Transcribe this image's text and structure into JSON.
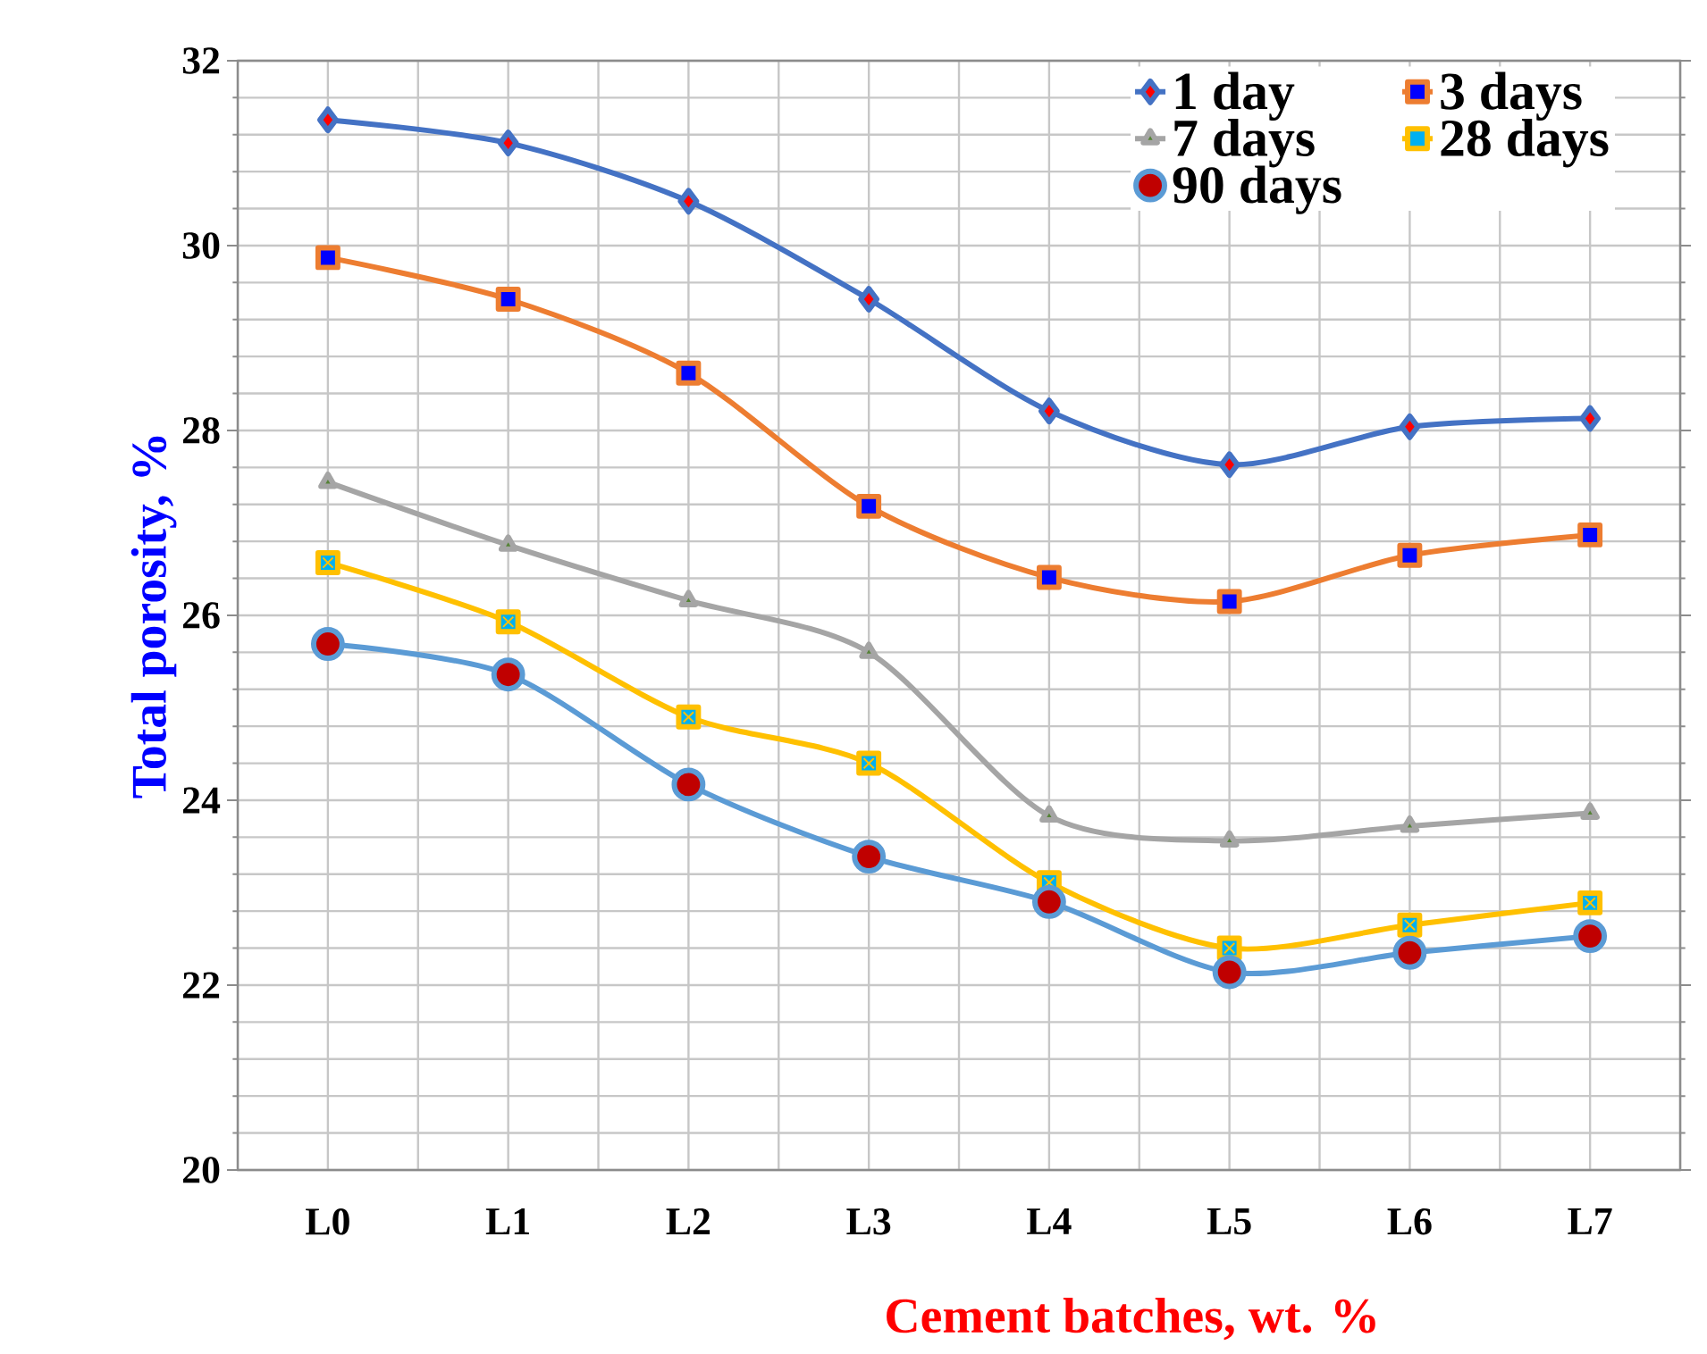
{
  "chart_data": {
    "type": "line",
    "xlabel": "Cement batches, wt. %",
    "ylabel": "Total porosity, %",
    "categories": [
      "L0",
      "L1",
      "L2",
      "L3",
      "L4",
      "L5",
      "L6",
      "L7"
    ],
    "series": [
      {
        "name": "1 day",
        "color": "#4472c4",
        "marker": "diamond",
        "values": [
          31.36,
          31.11,
          30.48,
          29.42,
          28.21,
          27.63,
          28.04,
          28.13
        ]
      },
      {
        "name": "3 days",
        "color": "#ed7d31",
        "marker": "square",
        "values": [
          29.87,
          29.42,
          28.62,
          27.18,
          26.41,
          26.15,
          26.65,
          26.87
        ]
      },
      {
        "name": "7 days",
        "color": "#a5a5a5",
        "marker": "triangle",
        "values": [
          27.44,
          26.76,
          26.16,
          25.6,
          23.83,
          23.56,
          23.72,
          23.86
        ]
      },
      {
        "name": "28 days",
        "color": "#ffc000",
        "marker": "cross",
        "values": [
          26.57,
          25.93,
          24.9,
          24.4,
          23.11,
          22.4,
          22.65,
          22.89
        ]
      },
      {
        "name": "90 days",
        "color": "#5b9bd5",
        "marker": "circle",
        "values": [
          25.69,
          25.36,
          24.17,
          23.39,
          22.9,
          22.14,
          22.35,
          22.53
        ]
      }
    ],
    "ylim": [
      20,
      32
    ],
    "yticks": [
      20,
      22,
      24,
      26,
      28,
      30,
      32
    ],
    "grid": true,
    "legend": "top right"
  }
}
